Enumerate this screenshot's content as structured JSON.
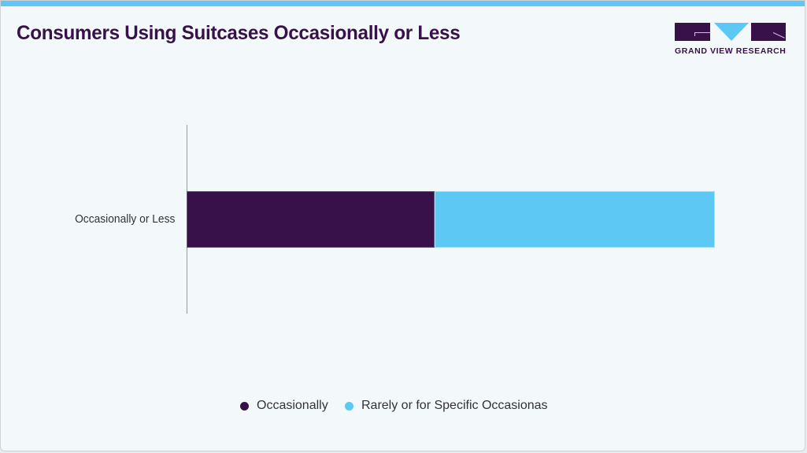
{
  "header": {
    "title": "Consumers Using Suitcases Occasionally or Less",
    "accent_color": "#5ec8f5"
  },
  "logo": {
    "text": "GRAND VIEW RESEARCH",
    "primary_color": "#38104a",
    "secondary_color": "#5ec8f5"
  },
  "chart_data": {
    "type": "bar",
    "orientation": "horizontal",
    "stacked": true,
    "title": "Consumers Using Suitcases Occasionally or Less",
    "categories": [
      "Occasionally or Less"
    ],
    "series": [
      {
        "name": "Occasionally",
        "values": [
          47
        ],
        "color": "#38104a"
      },
      {
        "name": "Rarely or for Specific Occasionas",
        "values": [
          53
        ],
        "color": "#5ec8f5"
      }
    ],
    "xlabel": "",
    "ylabel": "",
    "xlim": [
      0,
      100
    ],
    "grid": false,
    "legend_position": "bottom"
  },
  "legend": {
    "items": [
      {
        "label": "Occasionally",
        "color": "#38104a"
      },
      {
        "label": "Rarely or for Specific Occasionas",
        "color": "#5ec8f5"
      }
    ]
  }
}
